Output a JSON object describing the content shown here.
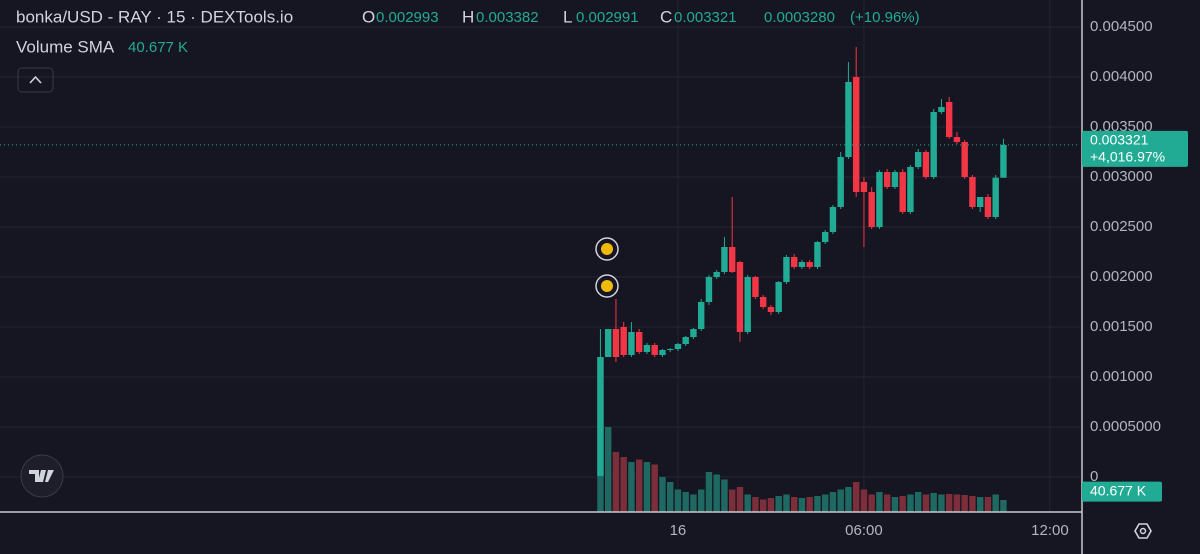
{
  "chart_data": {
    "type": "candlestick",
    "title": "bonka/USD - RAY · 15 · DEXTools.io",
    "ohlc_labels": [
      "O",
      "H",
      "L",
      "C"
    ],
    "change": {
      "value": 0.000328,
      "label": "0.0003280"
    },
    "change_pct": "(+10.96%)",
    "total_change": "+4,016.97%",
    "volume_sma": {
      "name": "Volume SMA",
      "value": 40.677,
      "label": "40.677 K"
    },
    "up_color": "#22ab94",
    "down_color": "#f23645",
    "volume_up_color": "#1e6a62",
    "volume_down_color": "#7c2e3b",
    "x": [
      21.5,
      21.75,
      22,
      22.25,
      22.5,
      22.75,
      23,
      23.25,
      23.5,
      23.75,
      24,
      24.25,
      24.5,
      24.75,
      25,
      25.25,
      25.5,
      25.75,
      26,
      26.25,
      26.5,
      26.75,
      27,
      27.25,
      27.5,
      27.75,
      28,
      28.25,
      28.5,
      28.75,
      29,
      29.25,
      29.5,
      29.75,
      30,
      30.25,
      30.5,
      30.75,
      31,
      31.25,
      31.5,
      31.75,
      32,
      32.25,
      32.5,
      32.75,
      33,
      33.25,
      33.5,
      33.75,
      34,
      34.25,
      34.5
    ],
    "open": [
      1e-05,
      0.0012,
      0.00148,
      0.0015,
      0.00122,
      0.00145,
      0.00125,
      0.00132,
      0.00122,
      0.00127,
      0.00128,
      0.00133,
      0.0014,
      0.00148,
      0.00175,
      0.002,
      0.00205,
      0.0023,
      0.00215,
      0.00145,
      0.002,
      0.0018,
      0.0017,
      0.00165,
      0.00195,
      0.0022,
      0.0021,
      0.00215,
      0.0021,
      0.00235,
      0.00245,
      0.0027,
      0.0032,
      0.004,
      0.00295,
      0.00285,
      0.0025,
      0.00305,
      0.0029,
      0.00305,
      0.00265,
      0.0031,
      0.00325,
      0.003,
      0.00365,
      0.00375,
      0.0034,
      0.00335,
      0.003,
      0.0027,
      0.0028,
      0.0026,
      0.002993
    ],
    "high": [
      0.00148,
      0.00148,
      0.00178,
      0.00155,
      0.00155,
      0.00148,
      0.00134,
      0.00134,
      0.00128,
      0.00129,
      0.00134,
      0.00141,
      0.00149,
      0.00178,
      0.00202,
      0.00207,
      0.0024,
      0.0028,
      0.00216,
      0.00202,
      0.00201,
      0.00182,
      0.00172,
      0.00196,
      0.00222,
      0.00223,
      0.00217,
      0.00217,
      0.00236,
      0.00247,
      0.00272,
      0.00325,
      0.00415,
      0.0043,
      0.003,
      0.0029,
      0.00307,
      0.00308,
      0.00307,
      0.00308,
      0.00312,
      0.00328,
      0.00327,
      0.00368,
      0.00378,
      0.0038,
      0.00345,
      0.00337,
      0.00302,
      0.0028,
      0.00283,
      0.00302,
      0.003382
    ],
    "low": [
      1e-05,
      0.0012,
      0.00115,
      0.0012,
      0.0012,
      0.00123,
      0.00123,
      0.0012,
      0.0012,
      0.00125,
      0.00126,
      0.00131,
      0.00138,
      0.00146,
      0.00172,
      0.00198,
      0.00203,
      0.00204,
      0.00135,
      0.00143,
      0.00178,
      0.00168,
      0.00162,
      0.00163,
      0.00193,
      0.00208,
      0.00208,
      0.00208,
      0.00208,
      0.00233,
      0.00243,
      0.00268,
      0.00318,
      0.0028,
      0.0023,
      0.00248,
      0.00248,
      0.00288,
      0.00288,
      0.00263,
      0.00263,
      0.00308,
      0.00298,
      0.00298,
      0.00363,
      0.00338,
      0.00333,
      0.00298,
      0.00268,
      0.00265,
      0.00258,
      0.00258,
      0.002991
    ],
    "close": [
      0.0012,
      0.00148,
      0.0012,
      0.00122,
      0.00145,
      0.00125,
      0.00132,
      0.00122,
      0.00127,
      0.00128,
      0.00133,
      0.0014,
      0.00148,
      0.00175,
      0.002,
      0.00205,
      0.0023,
      0.00205,
      0.00145,
      0.002,
      0.0018,
      0.0017,
      0.00165,
      0.00195,
      0.0022,
      0.0021,
      0.00215,
      0.0021,
      0.00235,
      0.00245,
      0.0027,
      0.0032,
      0.00395,
      0.00285,
      0.00285,
      0.0025,
      0.00305,
      0.0029,
      0.00305,
      0.00265,
      0.0031,
      0.00325,
      0.003,
      0.00365,
      0.0037,
      0.0034,
      0.00335,
      0.003,
      0.0027,
      0.0028,
      0.0026,
      0.002993,
      0.003321
    ],
    "volume": [
      310,
      170,
      120,
      110,
      100,
      105,
      100,
      95,
      70,
      60,
      45,
      40,
      35,
      45,
      80,
      75,
      65,
      45,
      50,
      35,
      30,
      25,
      28,
      32,
      35,
      30,
      28,
      30,
      32,
      35,
      40,
      45,
      50,
      60,
      45,
      35,
      40,
      35,
      30,
      32,
      35,
      40,
      35,
      38,
      35,
      36,
      35,
      34,
      32,
      30,
      30,
      35,
      24
    ],
    "xlim": [
      2.13,
      36.97
    ],
    "xticks": [
      {
        "value": 24,
        "label": "16"
      },
      {
        "value": 30,
        "label": "06:00"
      },
      {
        "value": 36,
        "label": "12:00"
      }
    ],
    "ylim": [
      -0.00035,
      0.00477
    ],
    "yticks": [
      {
        "value": 0.0045,
        "label": "0.004500"
      },
      {
        "value": 0.004,
        "label": "0.004000"
      },
      {
        "value": 0.0035,
        "label": "0.003500"
      },
      {
        "value": 0.003,
        "label": "0.003000"
      },
      {
        "value": 0.0025,
        "label": "0.002500"
      },
      {
        "value": 0.002,
        "label": "0.002000"
      },
      {
        "value": 0.0015,
        "label": "0.001500"
      },
      {
        "value": 0.001,
        "label": "0.001000"
      },
      {
        "value": 0.0005,
        "label": "0.0005000"
      },
      0
    ],
    "y2lim": [
      0,
      1000
    ],
    "grid": true
  }
}
